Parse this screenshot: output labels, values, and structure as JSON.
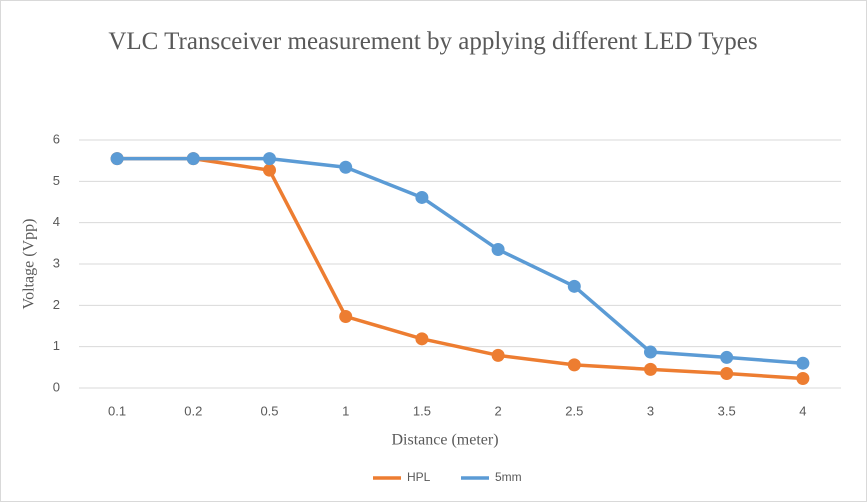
{
  "chart_data": {
    "type": "line",
    "title": "VLC Transceiver measurement by applying different LED Types",
    "x_label": "Distance (meter)",
    "y_label": "Voltage (Vpp)",
    "categories": [
      "0.1",
      "0.2",
      "0.5",
      "1",
      "1.5",
      "2",
      "2.5",
      "3",
      "3.5",
      "4"
    ],
    "series": [
      {
        "name": "HPL",
        "color": "#ed7d31",
        "values": [
          5.55,
          5.55,
          5.27,
          1.73,
          1.19,
          0.79,
          0.56,
          0.45,
          0.35,
          0.23
        ]
      },
      {
        "name": "5mm",
        "color": "#5b9bd5",
        "values": [
          5.55,
          5.55,
          5.55,
          5.34,
          4.61,
          3.35,
          2.46,
          0.87,
          0.74,
          0.6
        ]
      }
    ],
    "ylim": [
      0,
      6
    ],
    "yticks": [
      0,
      1,
      2,
      3,
      4,
      5,
      6
    ],
    "grid": true,
    "legend": "bottom"
  }
}
